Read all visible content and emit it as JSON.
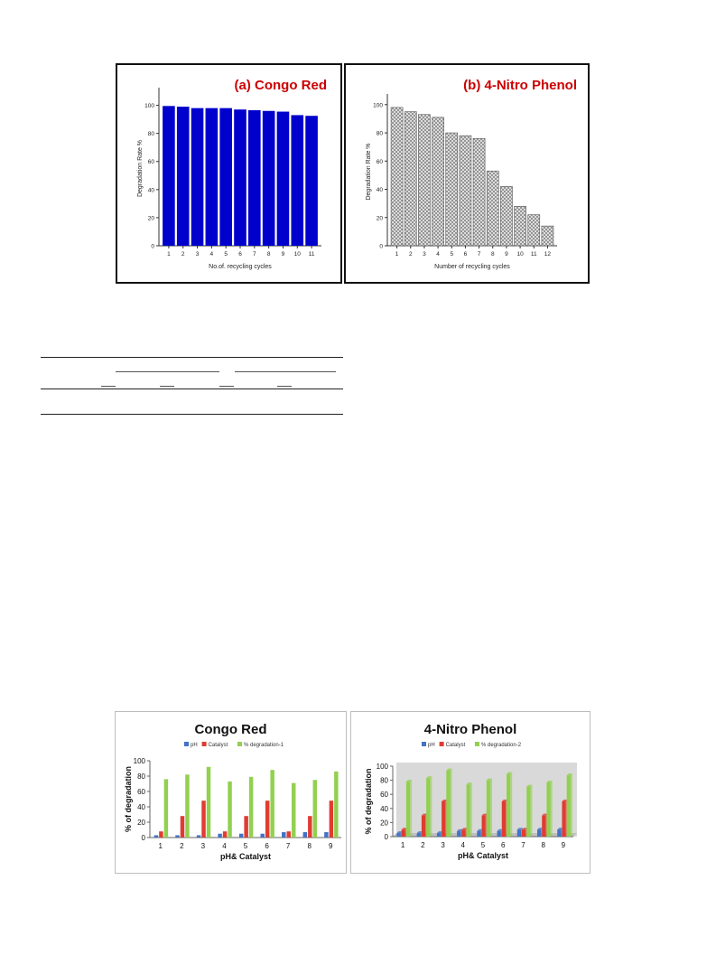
{
  "chart_data": [
    {
      "type": "bar",
      "title": "(a) Congo Red",
      "xlabel": "No.of. recycling cycles",
      "ylabel": "Degradation Rate %",
      "ylim": [
        0,
        110
      ],
      "yticks": [
        0,
        20,
        40,
        60,
        80,
        100
      ],
      "grid": false,
      "categories": [
        "1",
        "2",
        "3",
        "4",
        "5",
        "6",
        "7",
        "8",
        "9",
        "10",
        "11"
      ],
      "values": [
        99.5,
        99,
        98,
        98,
        98,
        97,
        96.5,
        96,
        95.5,
        93,
        92.5
      ],
      "colors": {
        "bar": "#0000cc",
        "title": "#cc0000"
      }
    },
    {
      "type": "bar",
      "title": "(b) 4-Nitro Phenol",
      "xlabel": "Number of recycling cycles",
      "ylabel": "Degradation Rate %",
      "ylim": [
        0,
        105
      ],
      "yticks": [
        0,
        20,
        40,
        60,
        80,
        100
      ],
      "grid": false,
      "categories": [
        "1",
        "2",
        "3",
        "4",
        "5",
        "6",
        "7",
        "8",
        "9",
        "10",
        "11",
        "12"
      ],
      "values": [
        98,
        95,
        93,
        91,
        80,
        78,
        76,
        53,
        42,
        28,
        22,
        14
      ],
      "colors": {
        "bar": "#d8d8d8",
        "title": "#cc0000"
      }
    },
    {
      "type": "bar",
      "title": "Congo Red",
      "xlabel": "pH& Catalyst",
      "ylabel": "% of degradation",
      "ylim": [
        0,
        100
      ],
      "yticks": [
        0,
        20,
        40,
        60,
        80,
        100
      ],
      "legend": "top",
      "categories": [
        "1",
        "2",
        "3",
        "4",
        "5",
        "6",
        "7",
        "8",
        "9"
      ],
      "series": [
        {
          "name": "pH",
          "values": [
            3,
            3,
            3,
            5,
            5,
            5,
            7,
            7,
            7
          ],
          "color": "#4472c4"
        },
        {
          "name": "Catalyst",
          "values": [
            8,
            28,
            48,
            8,
            28,
            48,
            8,
            28,
            48
          ],
          "color": "#e03c31"
        },
        {
          "name": "% degradation-1",
          "values": [
            76,
            82,
            92,
            73,
            79,
            88,
            71,
            75,
            86
          ],
          "color": "#92d050"
        }
      ]
    },
    {
      "type": "bar",
      "title": "4-Nitro Phenol",
      "xlabel": "pH& Catalyst",
      "ylabel": "% of degradation",
      "ylim": [
        0,
        100
      ],
      "yticks": [
        0,
        20,
        40,
        60,
        80,
        100
      ],
      "legend": "top",
      "categories": [
        "1",
        "2",
        "3",
        "4",
        "5",
        "6",
        "7",
        "8",
        "9"
      ],
      "series": [
        {
          "name": "pH",
          "values": [
            5,
            5,
            5,
            8,
            8,
            8,
            10,
            10,
            10
          ],
          "color": "#4472c4"
        },
        {
          "name": "Catalyst",
          "values": [
            10,
            30,
            50,
            10,
            30,
            50,
            10,
            30,
            50
          ],
          "color": "#e03c31"
        },
        {
          "name": "% degradation-2",
          "values": [
            78,
            83,
            94,
            74,
            80,
            89,
            71,
            77,
            87
          ],
          "color": "#92d050"
        }
      ]
    }
  ]
}
